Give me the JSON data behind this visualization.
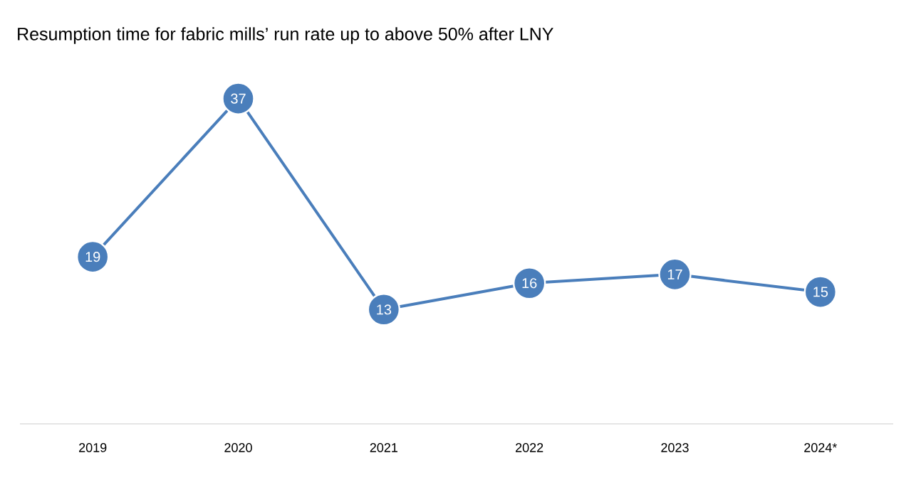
{
  "chart_data": {
    "type": "line",
    "title": "Resumption time for fabric mills’ run rate up to above 50% after LNY",
    "categories": [
      "2019",
      "2020",
      "2021",
      "2022",
      "2023",
      "2024*"
    ],
    "values": [
      19,
      37,
      13,
      16,
      17,
      15
    ],
    "color": "#4a7ebb",
    "marker": "circle",
    "data_labels": true,
    "tick_labels": "x"
  }
}
